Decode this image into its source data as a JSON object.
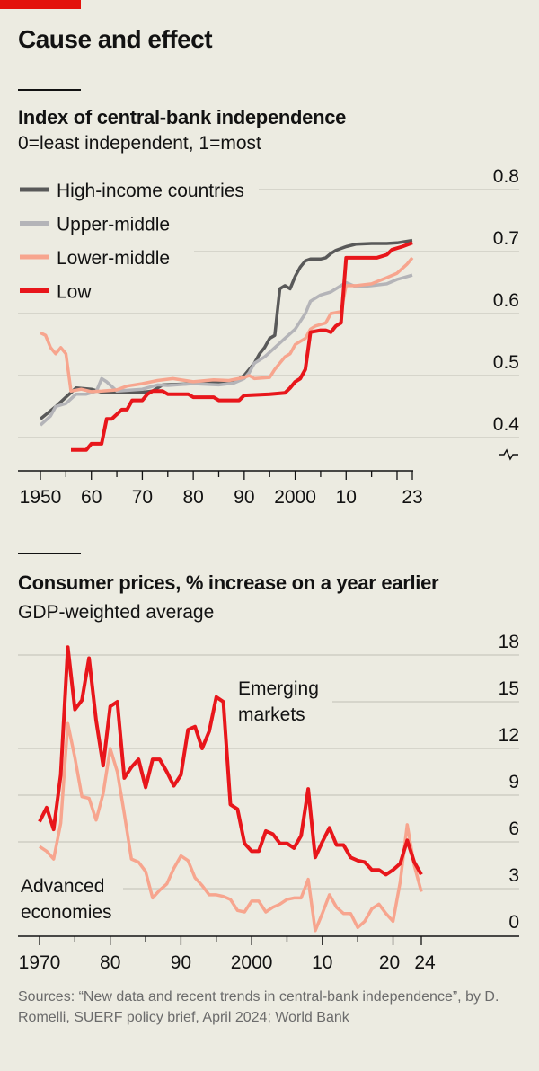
{
  "title": "Cause and effect",
  "colors": {
    "background": "#ECEBE1",
    "brand": "#E3120B",
    "high": "#595959",
    "upper": "#B4B4B8",
    "lower": "#F7A58E",
    "low": "#E8161B",
    "emerging": "#E8161B",
    "advanced": "#F7A58E"
  },
  "source": "Sources: “New data and recent trends in central-bank independence”, by D. Romelli, SUERF policy brief, April 2024; World Bank",
  "chart_data": [
    {
      "type": "line",
      "title": "Index of central-bank independence",
      "subtitle": "0=least independent, 1=most",
      "ylim": [
        0.37,
        0.8
      ],
      "y_ticks": [
        "0.8",
        "0.7",
        "0.6",
        "0.5",
        "0.4"
      ],
      "x_ticks": [
        "1950",
        "60",
        "70",
        "80",
        "90",
        "2000",
        "10",
        "23"
      ],
      "xlim": [
        1950,
        2023
      ],
      "grid": true,
      "legend": "top-left",
      "series": [
        {
          "name": "High-income countries",
          "color": "#595959",
          "x": [
            1950,
            1953,
            1955,
            1957,
            1960,
            1962,
            1970,
            1972,
            1974,
            1980,
            1988,
            1990,
            1992,
            1993,
            1994,
            1995,
            1996,
            1997,
            1998,
            1999,
            2000,
            2001,
            2002,
            2003,
            2005,
            2006,
            2007,
            2008,
            2010,
            2012,
            2015,
            2018,
            2020,
            2023
          ],
          "y": [
            0.43,
            0.45,
            0.465,
            0.48,
            0.478,
            0.473,
            0.473,
            0.475,
            0.485,
            0.487,
            0.49,
            0.5,
            0.52,
            0.535,
            0.545,
            0.56,
            0.565,
            0.64,
            0.645,
            0.64,
            0.66,
            0.675,
            0.685,
            0.688,
            0.688,
            0.69,
            0.697,
            0.702,
            0.708,
            0.712,
            0.713,
            0.713,
            0.714,
            0.718
          ]
        },
        {
          "name": "Upper-middle",
          "color": "#B4B4B8",
          "x": [
            1950,
            1952,
            1953,
            1955,
            1957,
            1959,
            1961,
            1962,
            1963,
            1965,
            1970,
            1973,
            1975,
            1980,
            1985,
            1988,
            1990,
            1991,
            1992,
            1994,
            1996,
            1998,
            2000,
            2002,
            2003,
            2005,
            2007,
            2009,
            2010,
            2012,
            2015,
            2018,
            2020,
            2023
          ],
          "y": [
            0.42,
            0.435,
            0.45,
            0.455,
            0.47,
            0.47,
            0.475,
            0.495,
            0.49,
            0.475,
            0.478,
            0.485,
            0.484,
            0.487,
            0.485,
            0.488,
            0.495,
            0.505,
            0.52,
            0.53,
            0.545,
            0.56,
            0.575,
            0.6,
            0.62,
            0.63,
            0.635,
            0.645,
            0.65,
            0.643,
            0.645,
            0.648,
            0.655,
            0.662
          ]
        },
        {
          "name": "Lower-middle",
          "color": "#F7A58E",
          "x": [
            1950,
            1951,
            1952,
            1953,
            1954,
            1955,
            1956,
            1958,
            1960,
            1962,
            1965,
            1967,
            1970,
            1973,
            1976,
            1980,
            1984,
            1987,
            1990,
            1991,
            1992,
            1995,
            1996,
            1997,
            1998,
            1999,
            2000,
            2001,
            2002,
            2003,
            2004,
            2006,
            2007,
            2009,
            2010,
            2012,
            2015,
            2018,
            2020,
            2022,
            2023
          ],
          "y": [
            0.569,
            0.565,
            0.545,
            0.535,
            0.545,
            0.535,
            0.475,
            0.478,
            0.474,
            0.475,
            0.477,
            0.483,
            0.487,
            0.492,
            0.495,
            0.49,
            0.493,
            0.492,
            0.497,
            0.5,
            0.495,
            0.497,
            0.51,
            0.52,
            0.53,
            0.535,
            0.55,
            0.555,
            0.56,
            0.575,
            0.58,
            0.585,
            0.6,
            0.603,
            0.645,
            0.645,
            0.648,
            0.658,
            0.665,
            0.68,
            0.69
          ]
        },
        {
          "name": "Low",
          "color": "#E8161B",
          "x": [
            1956,
            1959,
            1960,
            1962,
            1963,
            1964,
            1966,
            1967,
            1968,
            1970,
            1971,
            1972,
            1974,
            1975,
            1979,
            1980,
            1984,
            1985,
            1989,
            1990,
            1995,
            1998,
            1999,
            2000,
            2001,
            2002,
            2003,
            2005,
            2006,
            2007,
            2008,
            2009,
            2010,
            2012,
            2016,
            2018,
            2019,
            2021,
            2023
          ],
          "y": [
            0.38,
            0.38,
            0.39,
            0.39,
            0.43,
            0.43,
            0.445,
            0.445,
            0.46,
            0.46,
            0.47,
            0.475,
            0.475,
            0.47,
            0.47,
            0.465,
            0.465,
            0.46,
            0.46,
            0.468,
            0.47,
            0.472,
            0.48,
            0.49,
            0.495,
            0.51,
            0.57,
            0.573,
            0.573,
            0.57,
            0.58,
            0.585,
            0.69,
            0.69,
            0.69,
            0.695,
            0.703,
            0.708,
            0.714
          ]
        }
      ]
    },
    {
      "type": "line",
      "title": "Consumer prices, % increase on a year earlier",
      "subtitle": "GDP-weighted average",
      "ylim": [
        0,
        18
      ],
      "y_ticks": [
        "18",
        "15",
        "12",
        "9",
        "6",
        "3",
        "0"
      ],
      "x_ticks": [
        "1970",
        "80",
        "90",
        "2000",
        "10",
        "20",
        "24"
      ],
      "xlim": [
        1970,
        2024
      ],
      "grid": true,
      "x": [
        1970,
        1971,
        1972,
        1973,
        1974,
        1975,
        1976,
        1977,
        1978,
        1979,
        1980,
        1981,
        1982,
        1983,
        1984,
        1985,
        1986,
        1987,
        1988,
        1989,
        1990,
        1991,
        1992,
        1993,
        1994,
        1995,
        1996,
        1997,
        1998,
        1999,
        2000,
        2001,
        2002,
        2003,
        2004,
        2005,
        2006,
        2007,
        2008,
        2009,
        2010,
        2011,
        2012,
        2013,
        2014,
        2015,
        2016,
        2017,
        2018,
        2019,
        2020,
        2021,
        2022,
        2023,
        2024
      ],
      "series": [
        {
          "name": "Emerging markets",
          "label": [
            "Emerging",
            "markets"
          ],
          "color": "#E8161B",
          "values": [
            7.3,
            8.2,
            6.8,
            10.3,
            18.5,
            14.5,
            15.1,
            17.8,
            13.8,
            10.9,
            14.7,
            15.0,
            10.1,
            10.8,
            11.3,
            9.5,
            11.3,
            11.3,
            10.5,
            9.6,
            10.3,
            13.2,
            13.4,
            12.0,
            13.1,
            15.3,
            15.0,
            8.4,
            8.1,
            5.9,
            5.4,
            5.4,
            6.7,
            6.5,
            5.9,
            5.9,
            5.6,
            6.4,
            9.4,
            5.0,
            6.0,
            6.9,
            5.8,
            5.8,
            5.0,
            4.8,
            4.7,
            4.2,
            4.2,
            3.9,
            4.2,
            4.6,
            6.1,
            4.7,
            3.9
          ]
        },
        {
          "name": "Advanced economies",
          "label": [
            "Advanced",
            "economies"
          ],
          "color": "#F7A58E",
          "values": [
            5.7,
            5.4,
            4.9,
            7.2,
            13.6,
            11.4,
            8.9,
            8.8,
            7.4,
            9.1,
            12.0,
            10.5,
            7.8,
            4.9,
            4.7,
            4.1,
            2.4,
            2.9,
            3.3,
            4.3,
            5.1,
            4.8,
            3.7,
            3.2,
            2.6,
            2.6,
            2.5,
            2.3,
            1.6,
            1.5,
            2.2,
            2.2,
            1.5,
            1.8,
            2.0,
            2.3,
            2.4,
            2.4,
            3.6,
            0.3,
            1.4,
            2.6,
            1.8,
            1.4,
            1.4,
            0.5,
            0.9,
            1.7,
            2.0,
            1.4,
            0.9,
            3.4,
            7.1,
            4.5,
            2.8
          ]
        }
      ]
    }
  ]
}
